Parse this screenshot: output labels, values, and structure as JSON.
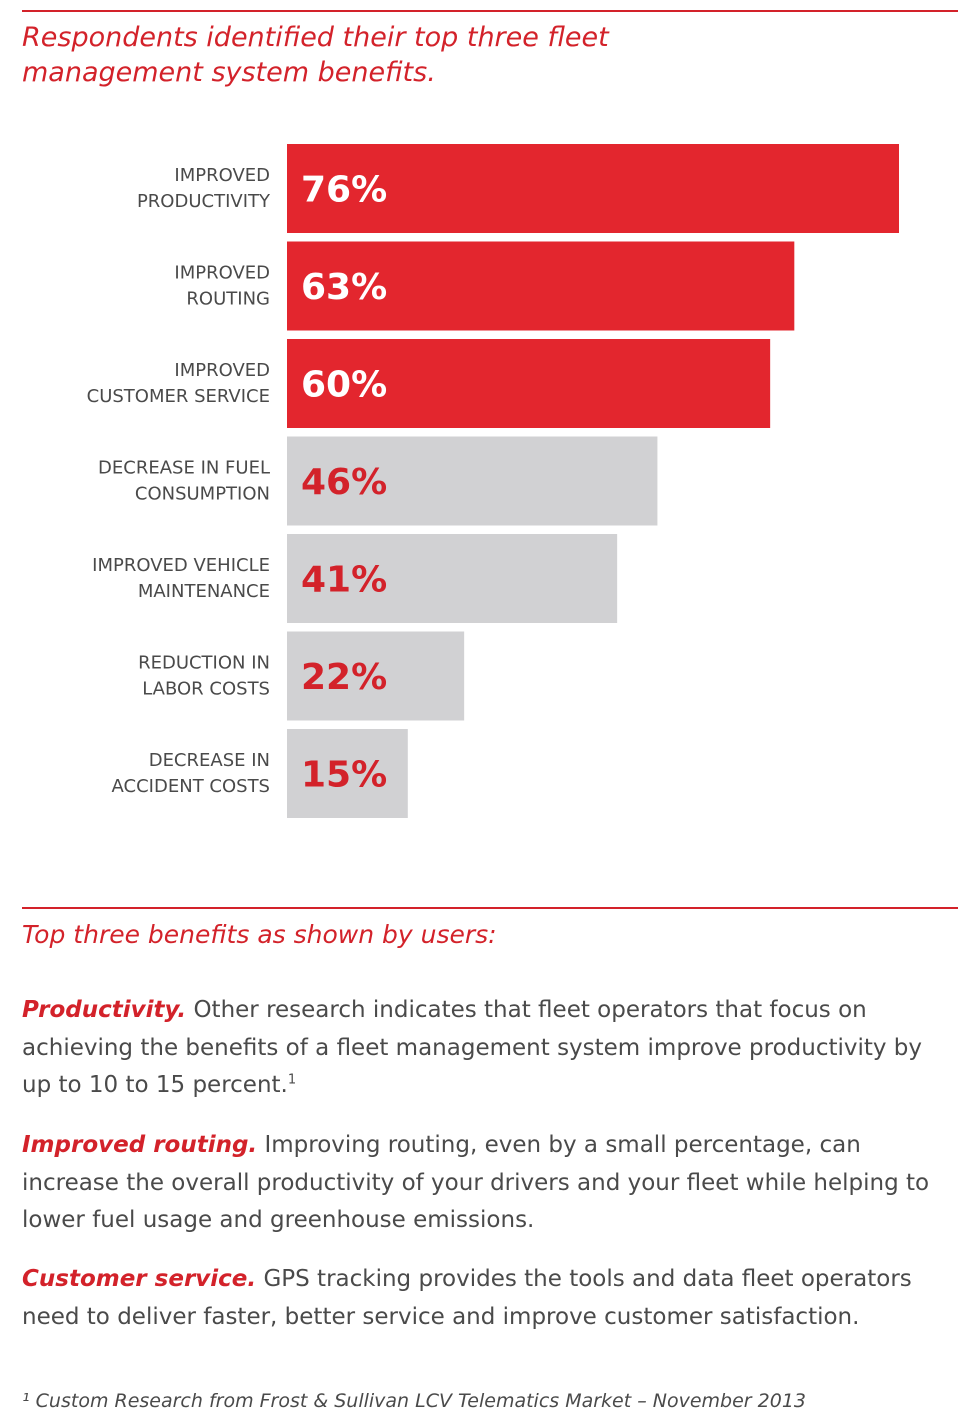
{
  "headline": "Respondents identified their top three fleet management system benefits.",
  "chart_data": {
    "type": "bar",
    "orientation": "horizontal",
    "title": "Respondents identified their top three fleet management system benefits.",
    "categories": [
      [
        "IMPROVED",
        "PRODUCTIVITY"
      ],
      [
        "IMPROVED",
        "ROUTING"
      ],
      [
        "IMPROVED",
        "CUSTOMER SERVICE"
      ],
      [
        "DECREASE IN FUEL",
        "CONSUMPTION"
      ],
      [
        "IMPROVED VEHICLE",
        "MAINTENANCE"
      ],
      [
        "REDUCTION IN",
        "LABOR COSTS"
      ],
      [
        "DECREASE IN",
        "ACCIDENT COSTS"
      ]
    ],
    "values": [
      76,
      63,
      60,
      46,
      41,
      22,
      15
    ],
    "value_labels": [
      "76%",
      "63%",
      "60%",
      "46%",
      "41%",
      "22%",
      "15%"
    ],
    "highlight_top": 3,
    "xlim": [
      0,
      76
    ],
    "colors": {
      "highlight_bar": "#e3262e",
      "other_bar": "#d1d1d3",
      "highlight_text": "#ffffff",
      "other_text": "#d3222a"
    }
  },
  "section2_title": "Top three benefits as shown by users:",
  "paragraphs": [
    {
      "lead": "Productivity.",
      "text": " Other research indicates that fleet operators that focus on achieving the benefits of a fleet management system improve productivity by up to 10 to 15 percent.",
      "sup": "1"
    },
    {
      "lead": "Improved routing.",
      "text": " Improving routing, even by a small percentage, can increase the overall productivity of your drivers and your fleet while helping to lower fuel usage and greenhouse emissions.",
      "sup": ""
    },
    {
      "lead": "Customer service.",
      "text": " GPS tracking provides the tools and data fleet operators need to deliver faster, better service and improve customer satisfaction.",
      "sup": ""
    }
  ],
  "footnote": "¹ Custom Research from Frost & Sullivan LCV Telematics Market – November 2013"
}
